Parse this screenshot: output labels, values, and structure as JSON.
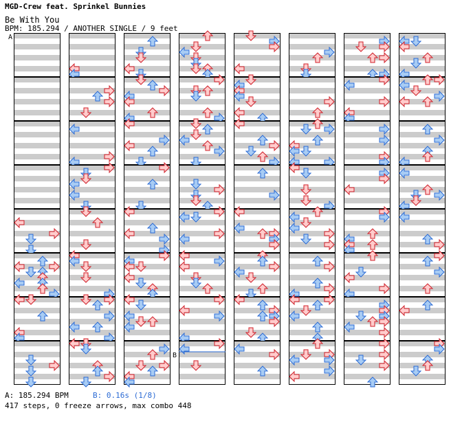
{
  "header": {
    "artist": "MGD-Crew feat. Sprinkel Bunnies",
    "title": "Be With You",
    "info": "BPM: 185.294 / ANOTHER SINGLE / 9 feet"
  },
  "markers": {
    "a": "A",
    "b": "B"
  },
  "footer": {
    "bpm_a": "A: 185.294 BPM",
    "bpm_b": "B: 0.16s (1/8)",
    "stats": "417 steps, 0 freeze arrows, max combo 448"
  },
  "colors": {
    "quarter": "#ffcccc",
    "quarter_stroke": "#d0202a",
    "eighth": "#a8ccf4",
    "eighth_stroke": "#2a6ad4",
    "stripe": "#cccccc",
    "lane_border": "#000000"
  },
  "icons": [
    "left-arrow-icon",
    "down-arrow-icon",
    "up-arrow-icon",
    "right-arrow-icon"
  ]
}
